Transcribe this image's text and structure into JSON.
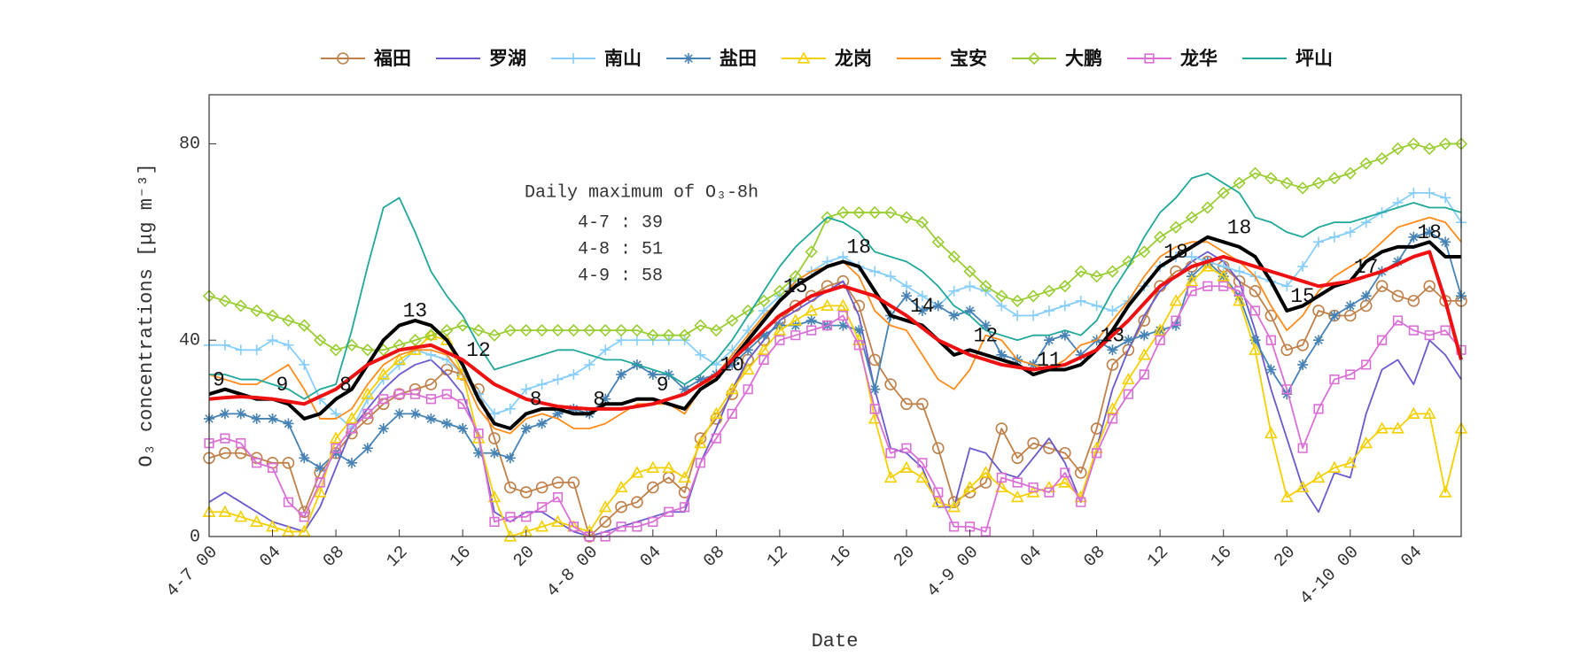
{
  "chart_data": {
    "type": "line",
    "xlabel": "Date",
    "ylabel": "O₃ concentrations [μg m⁻³]",
    "xlim": [
      0,
      79
    ],
    "ylim": [
      0,
      90
    ],
    "yticks": [
      0,
      40,
      80
    ],
    "xticks": [
      {
        "value": 0,
        "label": "4-7 00"
      },
      {
        "value": 4,
        "label": "04"
      },
      {
        "value": 8,
        "label": "08"
      },
      {
        "value": 12,
        "label": "12"
      },
      {
        "value": 16,
        "label": "16"
      },
      {
        "value": 20,
        "label": "20"
      },
      {
        "value": 24,
        "label": "4-8 00"
      },
      {
        "value": 28,
        "label": "04"
      },
      {
        "value": 32,
        "label": "08"
      },
      {
        "value": 36,
        "label": "12"
      },
      {
        "value": 40,
        "label": "16"
      },
      {
        "value": 44,
        "label": "20"
      },
      {
        "value": 48,
        "label": "4-9 00"
      },
      {
        "value": 52,
        "label": "04"
      },
      {
        "value": 56,
        "label": "08"
      },
      {
        "value": 60,
        "label": "12"
      },
      {
        "value": 64,
        "label": "16"
      },
      {
        "value": 68,
        "label": "20"
      },
      {
        "value": 72,
        "label": "4-10 00"
      },
      {
        "value": 76,
        "label": "04"
      }
    ],
    "x": [
      0,
      1,
      2,
      3,
      4,
      5,
      6,
      7,
      8,
      9,
      10,
      11,
      12,
      13,
      14,
      15,
      16,
      17,
      18,
      19,
      20,
      21,
      22,
      23,
      24,
      25,
      26,
      27,
      28,
      29,
      30,
      31,
      32,
      33,
      34,
      35,
      36,
      37,
      38,
      39,
      40,
      41,
      42,
      43,
      44,
      45,
      46,
      47,
      48,
      49,
      50,
      51,
      52,
      53,
      54,
      55,
      56,
      57,
      58,
      59,
      60,
      61,
      62,
      63,
      64,
      65,
      66,
      67,
      68,
      69,
      70,
      71,
      72,
      73,
      74,
      75,
      76,
      77,
      78,
      79
    ],
    "series": [
      {
        "name": "福田",
        "color": "#c0804a",
        "marker": "o",
        "values": [
          16,
          17,
          17,
          16,
          15,
          15,
          5,
          13,
          17,
          21,
          24,
          27,
          29,
          30,
          31,
          34,
          33,
          30,
          20,
          10,
          9,
          10,
          11,
          11,
          0,
          3,
          6,
          7,
          10,
          12,
          9,
          20,
          24,
          29,
          36,
          40,
          44,
          47,
          49,
          51,
          52,
          47,
          36,
          31,
          27,
          27,
          18,
          7,
          9,
          11,
          22,
          16,
          19,
          18,
          17,
          13,
          22,
          35,
          38,
          44,
          51,
          54,
          55,
          56,
          55,
          52,
          50,
          45,
          38,
          39,
          46,
          45,
          45,
          47,
          51,
          49,
          48,
          51,
          48,
          48
        ]
      },
      {
        "name": "罗湖",
        "color": "#6a5acd",
        "values": [
          7,
          9,
          7,
          5,
          3,
          2,
          1,
          6,
          14,
          22,
          26,
          30,
          33,
          35,
          36,
          33,
          29,
          20,
          5,
          3,
          5,
          5,
          3,
          1,
          0,
          1,
          2,
          3,
          4,
          5,
          5,
          15,
          22,
          30,
          36,
          40,
          44,
          46,
          48,
          50,
          52,
          45,
          30,
          18,
          17,
          14,
          6,
          6,
          18,
          17,
          13,
          12,
          16,
          20,
          15,
          7,
          18,
          30,
          38,
          45,
          50,
          53,
          56,
          58,
          56,
          52,
          42,
          30,
          20,
          10,
          5,
          13,
          12,
          25,
          34,
          36,
          31,
          40,
          37,
          32
        ]
      },
      {
        "name": "南山",
        "color": "#87cefa",
        "marker": "+",
        "values": [
          39,
          39,
          38,
          38,
          40,
          39,
          35,
          28,
          25,
          22,
          28,
          32,
          35,
          38,
          37,
          36,
          33,
          29,
          25,
          26,
          30,
          31,
          32,
          33,
          35,
          38,
          40,
          40,
          40,
          40,
          40,
          37,
          35,
          38,
          42,
          46,
          49,
          52,
          54,
          56,
          57,
          55,
          54,
          53,
          51,
          49,
          47,
          50,
          51,
          50,
          47,
          45,
          45,
          46,
          47,
          48,
          47,
          46,
          48,
          51,
          55,
          57,
          57,
          56,
          55,
          54,
          53,
          52,
          51,
          55,
          60,
          61,
          62,
          64,
          66,
          68,
          70,
          70,
          69,
          64
        ]
      },
      {
        "name": "盐田",
        "color": "#4682b4",
        "marker": "*",
        "values": [
          24,
          25,
          25,
          24,
          24,
          23,
          16,
          14,
          17,
          15,
          18,
          22,
          25,
          25,
          24,
          23,
          22,
          17,
          17,
          16,
          22,
          23,
          25,
          26,
          25,
          28,
          33,
          35,
          33,
          33,
          30,
          32,
          33,
          35,
          38,
          41,
          43,
          43,
          44,
          43,
          43,
          42,
          30,
          45,
          49,
          46,
          47,
          45,
          46,
          43,
          37,
          36,
          35,
          40,
          41,
          37,
          40,
          38,
          40,
          41,
          42,
          43,
          53,
          56,
          53,
          49,
          40,
          34,
          29,
          35,
          40,
          45,
          47,
          49,
          54,
          56,
          61,
          62,
          60,
          49
        ]
      },
      {
        "name": "龙岗",
        "color": "#f5d000",
        "marker": "^",
        "values": [
          5,
          5,
          4,
          3,
          2,
          1,
          1,
          9,
          20,
          24,
          29,
          33,
          36,
          38,
          41,
          40,
          33,
          20,
          8,
          0,
          1,
          2,
          3,
          2,
          1,
          6,
          10,
          13,
          14,
          14,
          12,
          19,
          25,
          30,
          34,
          38,
          42,
          44,
          46,
          47,
          47,
          40,
          24,
          12,
          14,
          12,
          7,
          6,
          10,
          13,
          10,
          8,
          9,
          10,
          11,
          8,
          18,
          26,
          32,
          37,
          42,
          48,
          52,
          55,
          53,
          48,
          38,
          21,
          8,
          10,
          12,
          14,
          15,
          19,
          22,
          22,
          25,
          25,
          9,
          22
        ]
      },
      {
        "name": "宝安",
        "color": "#ff8c1a",
        "values": [
          33,
          32,
          31,
          31,
          33,
          35,
          30,
          24,
          24,
          26,
          31,
          35,
          37,
          38,
          38,
          37,
          33,
          26,
          22,
          21,
          24,
          25,
          24,
          22,
          22,
          23,
          25,
          27,
          27,
          27,
          25,
          30,
          33,
          37,
          41,
          45,
          48,
          52,
          54,
          55,
          56,
          53,
          46,
          43,
          42,
          37,
          32,
          30,
          34,
          41,
          40,
          36,
          35,
          34,
          36,
          39,
          40,
          44,
          48,
          53,
          57,
          59,
          60,
          60,
          58,
          56,
          53,
          47,
          42,
          45,
          50,
          53,
          55,
          57,
          60,
          63,
          64,
          65,
          64,
          60
        ]
      },
      {
        "name": "大鹏",
        "color": "#9acd32",
        "marker": "d",
        "values": [
          49,
          48,
          47,
          46,
          45,
          44,
          43,
          40,
          38,
          39,
          38,
          38,
          39,
          40,
          41,
          42,
          43,
          42,
          41,
          42,
          42,
          42,
          42,
          42,
          42,
          42,
          42,
          42,
          41,
          41,
          41,
          43,
          42,
          44,
          46,
          48,
          50,
          53,
          58,
          65,
          66,
          66,
          66,
          66,
          65,
          64,
          60,
          57,
          54,
          51,
          49,
          48,
          49,
          50,
          51,
          54,
          53,
          54,
          56,
          58,
          61,
          63,
          65,
          67,
          70,
          72,
          74,
          73,
          72,
          71,
          72,
          73,
          74,
          76,
          77,
          79,
          80,
          79,
          80,
          80
        ]
      },
      {
        "name": "龙华",
        "color": "#da70d6",
        "marker": "s",
        "values": [
          19,
          20,
          19,
          15,
          14,
          7,
          4,
          11,
          18,
          22,
          25,
          28,
          29,
          29,
          28,
          29,
          27,
          21,
          3,
          4,
          4,
          6,
          8,
          2,
          0,
          0,
          2,
          2,
          3,
          5,
          6,
          15,
          20,
          25,
          30,
          36,
          40,
          41,
          42,
          43,
          45,
          39,
          26,
          17,
          18,
          15,
          9,
          2,
          2,
          1,
          12,
          11,
          10,
          9,
          13,
          7,
          17,
          24,
          29,
          33,
          40,
          44,
          50,
          51,
          51,
          50,
          46,
          40,
          30,
          18,
          26,
          32,
          33,
          35,
          40,
          44,
          42,
          41,
          42,
          38
        ]
      },
      {
        "name": "坪山",
        "color": "#20a89a",
        "values": [
          33,
          33,
          32,
          32,
          31,
          30,
          28,
          30,
          31,
          42,
          55,
          67,
          69,
          62,
          54,
          49,
          45,
          39,
          34,
          35,
          36,
          37,
          38,
          38,
          37,
          36,
          36,
          35,
          34,
          33,
          31,
          33,
          36,
          40,
          45,
          50,
          55,
          59,
          62,
          65,
          64,
          62,
          58,
          57,
          56,
          54,
          51,
          47,
          45,
          42,
          41,
          40,
          41,
          41,
          42,
          41,
          44,
          50,
          55,
          61,
          66,
          69,
          73,
          74,
          72,
          70,
          65,
          64,
          62,
          61,
          63,
          64,
          64,
          65,
          66,
          67,
          68,
          67,
          67,
          66
        ]
      }
    ],
    "lines": [
      {
        "color": "#000000",
        "width": 4,
        "values": [
          29,
          30,
          29,
          28,
          28,
          27,
          24,
          25,
          28,
          30,
          35,
          40,
          43,
          44,
          43,
          40,
          35,
          28,
          23,
          22,
          25,
          26,
          26,
          25,
          25,
          27,
          27,
          28,
          28,
          27,
          26,
          30,
          32,
          36,
          40,
          44,
          48,
          51,
          53,
          55,
          56,
          55,
          50,
          45,
          44,
          43,
          40,
          37,
          38,
          37,
          36,
          35,
          33,
          34,
          34,
          35,
          38,
          42,
          47,
          51,
          55,
          57,
          59,
          61,
          60,
          59,
          57,
          52,
          46,
          47,
          49,
          51,
          52,
          56,
          58,
          59,
          59,
          60,
          57,
          57
        ]
      },
      {
        "color": "#ee1111",
        "width": 4,
        "values": [
          28,
          28.3,
          28.5,
          28.3,
          28,
          27.5,
          27,
          28.5,
          30,
          32.5,
          35,
          36.5,
          38,
          38.5,
          39,
          37.5,
          36,
          33.5,
          31,
          29.5,
          28,
          27.2,
          26.5,
          26.2,
          26,
          26,
          26,
          26.5,
          27,
          28,
          29,
          31,
          33,
          36,
          39,
          42,
          45,
          47,
          49,
          50,
          51,
          50,
          49,
          47,
          45,
          42.5,
          40,
          38.5,
          37,
          36,
          35,
          34.5,
          34,
          34.5,
          35,
          36.5,
          38,
          41,
          44,
          47.5,
          51,
          53,
          55,
          56,
          57,
          56,
          55,
          54,
          53,
          52,
          51,
          51.5,
          52,
          53,
          54,
          55.5,
          57,
          58,
          48,
          36
        ]
      }
    ],
    "point_labels": {
      "x": [
        0,
        4,
        8,
        12,
        16,
        20,
        24,
        28,
        32,
        36,
        40,
        44,
        48,
        52,
        56,
        60,
        64,
        68,
        72,
        76
      ],
      "labels": [
        9,
        9,
        8,
        13,
        12,
        8,
        8,
        9,
        10,
        15,
        18,
        14,
        12,
        11,
        13,
        18,
        18,
        15,
        17,
        18
      ]
    },
    "annotation": {
      "title": "Daily maximum of O₃-8h",
      "lines": [
        "4-7 : 39",
        "4-8 : 51",
        "4-9 : 58"
      ]
    }
  }
}
